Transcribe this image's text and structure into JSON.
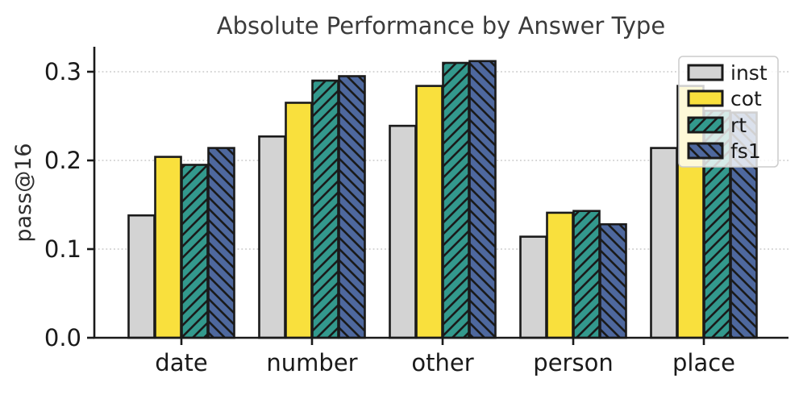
{
  "chart_data": {
    "type": "bar",
    "title": "Absolute Performance by Answer Type",
    "xlabel": "",
    "ylabel": "pass@16",
    "categories": [
      "date",
      "number",
      "other",
      "person",
      "place"
    ],
    "series": [
      {
        "name": "inst",
        "color": "#d3d3d3",
        "hatch": "none",
        "values": [
          0.138,
          0.227,
          0.239,
          0.114,
          0.214
        ]
      },
      {
        "name": "cot",
        "color": "#f9e03d",
        "hatch": "none",
        "values": [
          0.204,
          0.265,
          0.284,
          0.141,
          0.284
        ]
      },
      {
        "name": "rt",
        "color": "#33998d",
        "hatch": "/",
        "values": [
          0.195,
          0.29,
          0.31,
          0.143,
          0.256
        ]
      },
      {
        "name": "fs1",
        "color": "#4e689e",
        "hatch": "\\",
        "values": [
          0.214,
          0.295,
          0.312,
          0.128,
          0.254
        ]
      }
    ],
    "ylim": [
      0,
      0.328
    ],
    "yticks": [
      0.0,
      0.1,
      0.2,
      0.3
    ],
    "ytick_labels": [
      "0.0",
      "0.1",
      "0.2",
      "0.3"
    ],
    "grid": "horizontal-dotted",
    "legend_position": "upper-right",
    "colors": {
      "bar_edge": "#1a1a1a",
      "grid_line": "#c8c8c8",
      "spine": "#1a1a1a",
      "title_text": "#3b3b3b",
      "tick_text": "#1a1a1a",
      "legend_border": "#cccccc",
      "legend_bg": "rgba(255,255,255,0.8)"
    }
  }
}
